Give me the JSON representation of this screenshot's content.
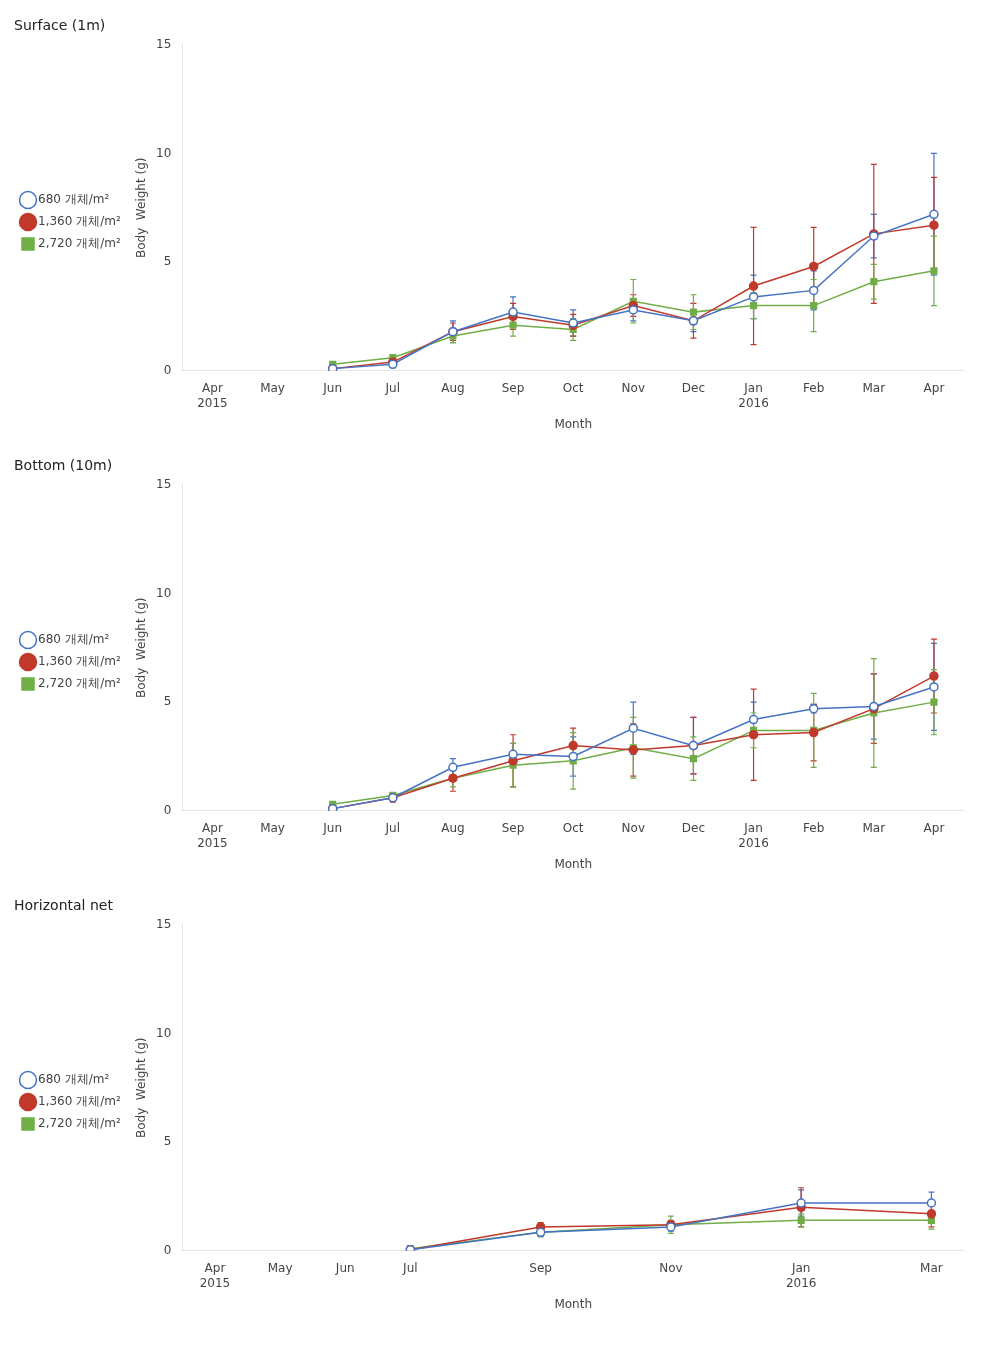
{
  "chart_data": [
    {
      "type": "line",
      "title": "Surface (1m)",
      "xlabel": "Month",
      "ylabel": "Body  Weight (g)",
      "categories": [
        "Apr\n2015",
        "May",
        "Jun",
        "Jul",
        "Aug",
        "Sep",
        "Oct",
        "Nov",
        "Dec",
        "Jan\n2016",
        "Feb",
        "Mar",
        "Apr"
      ],
      "series": [
        {
          "name": "680 개체/m²",
          "color": "#4472C4",
          "marker": "open_circle",
          "values": [
            null,
            null,
            0.1,
            0.3,
            1.8,
            2.7,
            2.2,
            2.8,
            2.3,
            3.4,
            3.7,
            6.2,
            7.2
          ],
          "errors": [
            null,
            null,
            0.05,
            0.15,
            0.5,
            0.7,
            0.6,
            0.5,
            0.5,
            1.0,
            0.9,
            1.0,
            2.8
          ]
        },
        {
          "name": "1,360 개체/m²",
          "color": "#C0392B",
          "marker": "circle",
          "values": [
            null,
            null,
            0.1,
            0.4,
            1.8,
            2.5,
            2.1,
            3.0,
            2.3,
            3.9,
            4.8,
            6.3,
            6.7
          ],
          "errors": [
            null,
            null,
            0.05,
            0.15,
            0.4,
            0.6,
            0.5,
            0.5,
            0.8,
            2.7,
            1.8,
            3.2,
            2.2
          ]
        },
        {
          "name": "2,720 개체/m²",
          "color": "#70AD47",
          "marker": "square",
          "values": [
            null,
            null,
            0.3,
            0.6,
            1.6,
            2.1,
            1.9,
            3.2,
            2.7,
            3.0,
            3.0,
            4.1,
            4.6
          ],
          "errors": [
            null,
            null,
            0.05,
            0.15,
            0.3,
            0.5,
            0.5,
            1.0,
            0.8,
            0.6,
            1.2,
            0.8,
            1.6
          ]
        }
      ],
      "ylim": [
        0,
        15
      ],
      "yticks": [
        0,
        5,
        10,
        15
      ],
      "grid": false,
      "legend": "left"
    },
    {
      "type": "line",
      "title": "Bottom (10m)",
      "xlabel": "Month",
      "ylabel": "Body  Weight (g)",
      "categories": [
        "Apr\n2015",
        "May",
        "Jun",
        "Jul",
        "Aug",
        "Sep",
        "Oct",
        "Nov",
        "Dec",
        "Jan\n2016",
        "Feb",
        "Mar",
        "Apr"
      ],
      "series": [
        {
          "name": "680 개체/m²",
          "color": "#4472C4",
          "marker": "open_circle",
          "values": [
            null,
            null,
            0.1,
            0.6,
            2.0,
            2.6,
            2.5,
            3.8,
            3.0,
            4.2,
            4.7,
            4.8,
            5.7
          ],
          "errors": [
            null,
            null,
            0.05,
            0.15,
            0.4,
            0.5,
            0.9,
            1.2,
            1.3,
            0.8,
            0.2,
            1.5,
            2.0
          ]
        },
        {
          "name": "1,360 개체/m²",
          "color": "#C0392B",
          "marker": "circle",
          "values": [
            null,
            null,
            0.1,
            0.6,
            1.5,
            2.3,
            3.0,
            2.8,
            3.0,
            3.5,
            3.6,
            4.7,
            6.2
          ],
          "errors": [
            null,
            null,
            0.05,
            0.2,
            0.6,
            1.2,
            0.8,
            1.2,
            1.3,
            2.1,
            1.3,
            1.6,
            1.7
          ]
        },
        {
          "name": "2,720 개체/m²",
          "color": "#70AD47",
          "marker": "square",
          "values": [
            null,
            null,
            0.3,
            0.7,
            1.5,
            2.1,
            2.3,
            2.9,
            2.4,
            3.7,
            3.7,
            4.5,
            5.0
          ],
          "errors": [
            null,
            null,
            0.05,
            0.15,
            0.4,
            1.0,
            1.3,
            1.4,
            1.0,
            0.8,
            1.7,
            2.5,
            1.5
          ]
        }
      ],
      "ylim": [
        0,
        15
      ],
      "yticks": [
        0,
        5,
        10,
        15
      ],
      "grid": false,
      "legend": "left"
    },
    {
      "type": "line",
      "title": "Horizontal net",
      "xlabel": "Month",
      "ylabel": "Body  Weight (g)",
      "categories": [
        "Apr\n2015",
        "May",
        "Jun",
        "Jul",
        null,
        "Sep",
        null,
        "Nov",
        null,
        "Jan\n2016",
        null,
        "Mar"
      ],
      "series": [
        {
          "name": "680 개체/m²",
          "color": "#4472C4",
          "marker": "open_circle",
          "values": [
            null,
            null,
            null,
            0.05,
            null,
            0.85,
            null,
            1.1,
            null,
            2.2,
            null,
            2.2
          ],
          "errors": [
            null,
            null,
            null,
            0.03,
            null,
            0.2,
            null,
            0.2,
            null,
            0.6,
            null,
            0.5
          ]
        },
        {
          "name": "1,360 개체/m²",
          "color": "#C0392B",
          "marker": "circle",
          "values": [
            null,
            null,
            null,
            0.05,
            null,
            1.1,
            null,
            1.2,
            null,
            2.0,
            null,
            1.7
          ],
          "errors": [
            null,
            null,
            null,
            0.03,
            null,
            0.2,
            null,
            0.2,
            null,
            0.9,
            null,
            0.6
          ]
        },
        {
          "name": "2,720 개체/m²",
          "color": "#70AD47",
          "marker": "square",
          "values": [
            null,
            null,
            null,
            0.1,
            null,
            0.85,
            null,
            1.2,
            null,
            1.4,
            null,
            1.4
          ],
          "errors": [
            null,
            null,
            null,
            0.03,
            null,
            0.2,
            null,
            0.4,
            null,
            0.3,
            null,
            0.4
          ]
        }
      ],
      "ylim": [
        0,
        15
      ],
      "yticks": [
        0,
        5,
        10,
        15
      ],
      "grid": false,
      "legend": "left"
    }
  ]
}
